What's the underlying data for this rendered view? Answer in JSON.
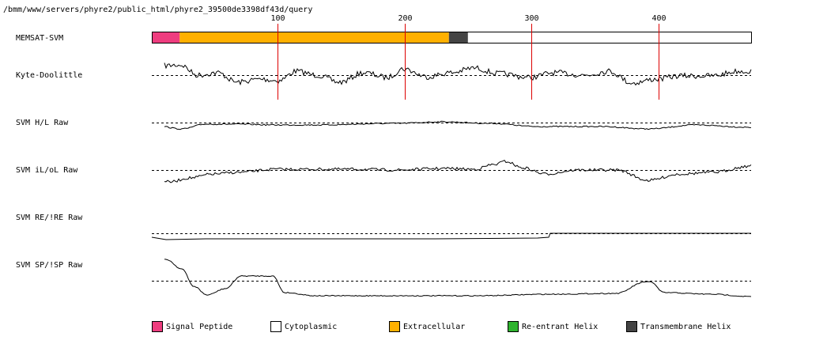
{
  "path": "/bmm/www/servers/phyre2/public_html/phyre2_39500de3398df43d/query",
  "axis": {
    "ticks": [
      100,
      200,
      300,
      400
    ],
    "sequence_length": 473
  },
  "tracks": [
    {
      "label": "MEMSAT-SVM",
      "type": "topology"
    },
    {
      "label": "Kyte-Doolittle",
      "type": "profile"
    },
    {
      "label": "SVM H/L Raw",
      "type": "profile"
    },
    {
      "label": "SVM iL/oL Raw",
      "type": "profile"
    },
    {
      "label": "SVM RE/!RE Raw",
      "type": "profile"
    },
    {
      "label": "SVM SP/!SP Raw",
      "type": "profile"
    }
  ],
  "topology_segments": [
    {
      "kind": "Signal Peptide",
      "start": 1,
      "end": 22
    },
    {
      "kind": "Extracellular",
      "start": 23,
      "end": 234
    },
    {
      "kind": "Transmembrane Helix",
      "start": 235,
      "end": 249
    },
    {
      "kind": "Cytoplasmic",
      "start": 250,
      "end": 473
    }
  ],
  "legend": [
    {
      "label": "Signal Peptide",
      "color": "#ee3d7f"
    },
    {
      "label": "Cytoplasmic",
      "color": "#ffffff"
    },
    {
      "label": "Extracellular",
      "color": "#ffb000"
    },
    {
      "label": "Re-entrant Helix",
      "color": "#2fb32f"
    },
    {
      "label": "Transmembrane Helix",
      "color": "#444444"
    }
  ],
  "colors": {
    "tick_line": "#dd0000",
    "trace": "#000000",
    "baseline": "#000000"
  }
}
